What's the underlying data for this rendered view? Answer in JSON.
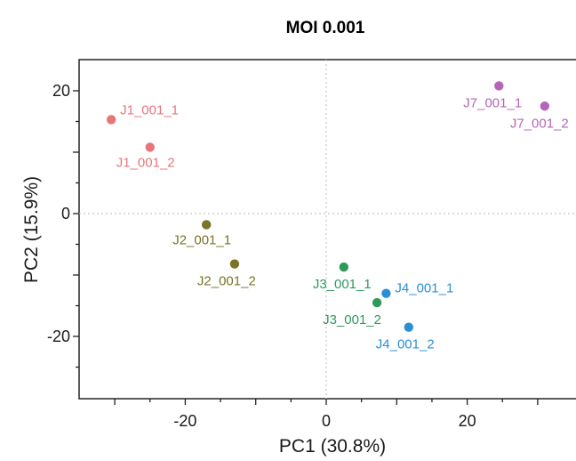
{
  "chart_data": {
    "type": "scatter",
    "title": "MOI 0.001",
    "xlabel": "PC1 (30.8%)",
    "ylabel": "PC2 (15.9%)",
    "xlim": [
      -35,
      35
    ],
    "ylim": [
      -30,
      25
    ],
    "xticks": [
      -20,
      0,
      20
    ],
    "yticks": [
      20,
      0,
      -20
    ],
    "zero_lines": true,
    "points": [
      {
        "label": "J1_001_1",
        "x": -30.5,
        "y": 15.3,
        "color": "#e8757a",
        "label_dx": 10,
        "label_dy": -6,
        "anchor": "start"
      },
      {
        "label": "J1_001_2",
        "x": -25.0,
        "y": 10.8,
        "color": "#e8757a",
        "label_dx": -38,
        "label_dy": 22,
        "anchor": "start"
      },
      {
        "label": "J2_001_1",
        "x": -17.0,
        "y": -1.8,
        "color": "#7a7426",
        "label_dx": -38,
        "label_dy": 22,
        "anchor": "start"
      },
      {
        "label": "J2_001_2",
        "x": -13.0,
        "y": -8.2,
        "color": "#7a7426",
        "label_dx": -42,
        "label_dy": 24,
        "anchor": "start"
      },
      {
        "label": "J3_001_1",
        "x": 2.5,
        "y": -8.7,
        "color": "#2e9a5a",
        "label_dx": -35,
        "label_dy": 24,
        "anchor": "start"
      },
      {
        "label": "J3_001_2",
        "x": 7.2,
        "y": -14.5,
        "color": "#2e9a5a",
        "label_dx": -61,
        "label_dy": 24,
        "anchor": "start"
      },
      {
        "label": "J4_001_1",
        "x": 8.5,
        "y": -13.0,
        "color": "#2b8fd6",
        "label_dx": 10,
        "label_dy": -1,
        "anchor": "start"
      },
      {
        "label": "J4_001_2",
        "x": 11.7,
        "y": -18.5,
        "color": "#2b8fd6",
        "label_dx": -37,
        "label_dy": 24,
        "anchor": "start"
      },
      {
        "label": "J7_001_1",
        "x": 24.5,
        "y": 20.8,
        "color": "#b565b8",
        "label_dx": -40,
        "label_dy": 24,
        "anchor": "start"
      },
      {
        "label": "J7_001_2",
        "x": 31.0,
        "y": 17.5,
        "color": "#b565b8",
        "label_dx": -39,
        "label_dy": 24,
        "anchor": "start"
      }
    ]
  }
}
